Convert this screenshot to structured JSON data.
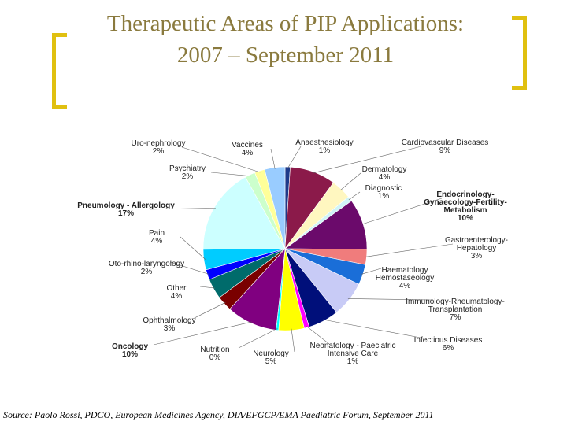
{
  "title_line1": "Therapeutic Areas of PIP Applications:",
  "title_line2": "2007 – September 2011",
  "source": "Source: Paolo Rossi, PDCO, European Medicines Agency, DIA/EFGCP/EMA Paediatric Forum, September 2011",
  "chart_data": {
    "type": "pie",
    "title": "Therapeutic Areas of PIP Applications: 2007 – September 2011",
    "slices": [
      {
        "label": [
          "Anaesthesiology",
          "1%"
        ],
        "value": 1,
        "color": "#1e3a8a",
        "bold": false
      },
      {
        "label": [
          "Cardiovascular Diseases",
          "9%"
        ],
        "value": 9,
        "color": "#8b1a4a",
        "bold": false
      },
      {
        "label": [
          "Dermatology",
          "4%"
        ],
        "value": 4,
        "color": "#fff7c0",
        "bold": false
      },
      {
        "label": [
          "Diagnostic",
          "1%"
        ],
        "value": 1,
        "color": "#d0f4f7",
        "bold": false
      },
      {
        "label": [
          "Endocrinology-",
          "Gynaecology-Fertility-",
          "Metabolism",
          "10%"
        ],
        "value": 10,
        "color": "#6b0a6b",
        "bold": true
      },
      {
        "label": [
          "Gastroenterology-",
          "Hepatology",
          "3%"
        ],
        "value": 3,
        "color": "#f07c7c",
        "bold": false
      },
      {
        "label": [
          "Haematology",
          "Hemostaseology",
          "4%"
        ],
        "value": 4,
        "color": "#1a6ed8",
        "bold": false
      },
      {
        "label": [
          "Immunology-Rheumatology-",
          "Transplantation",
          "7%"
        ],
        "value": 7,
        "color": "#c8cbf6",
        "bold": false
      },
      {
        "label": [
          "Infectious Diseases",
          "6%"
        ],
        "value": 6,
        "color": "#000f7a",
        "bold": false
      },
      {
        "label": [
          "Neonatology - Paeciatric",
          "Intensive Care",
          "1%"
        ],
        "value": 1,
        "color": "#ff00ff",
        "bold": false
      },
      {
        "label": [
          "Neurology",
          "5%"
        ],
        "value": 5,
        "color": "#ffff00",
        "bold": false
      },
      {
        "label": [
          "Nutrition",
          "0%"
        ],
        "value": 0.5,
        "color": "#00ffff",
        "bold": false
      },
      {
        "label": [
          "Oncology",
          "10%"
        ],
        "value": 10,
        "color": "#800080",
        "bold": true
      },
      {
        "label": [
          "Ophthalmology",
          "3%"
        ],
        "value": 3,
        "color": "#7a0000",
        "bold": false
      },
      {
        "label": [
          "Other",
          "4%"
        ],
        "value": 4,
        "color": "#006b6b",
        "bold": false
      },
      {
        "label": [
          "Oto-rhino-laryngology",
          "2%"
        ],
        "value": 2,
        "color": "#0000ff",
        "bold": false
      },
      {
        "label": [
          "Pain",
          "4%"
        ],
        "value": 4,
        "color": "#00ccff",
        "bold": false
      },
      {
        "label": [
          "Pneumology - Allergology",
          "17%"
        ],
        "value": 17,
        "color": "#ccffff",
        "bold": true
      },
      {
        "label": [
          "Psychiatry",
          "2%"
        ],
        "value": 2,
        "color": "#ccffcc",
        "bold": false
      },
      {
        "label": [
          "Uro-nephrology",
          "2%"
        ],
        "value": 2,
        "color": "#ffff99",
        "bold": false
      },
      {
        "label": [
          "Vaccines",
          "4%"
        ],
        "value": 4,
        "color": "#99ccff",
        "bold": false
      }
    ]
  }
}
